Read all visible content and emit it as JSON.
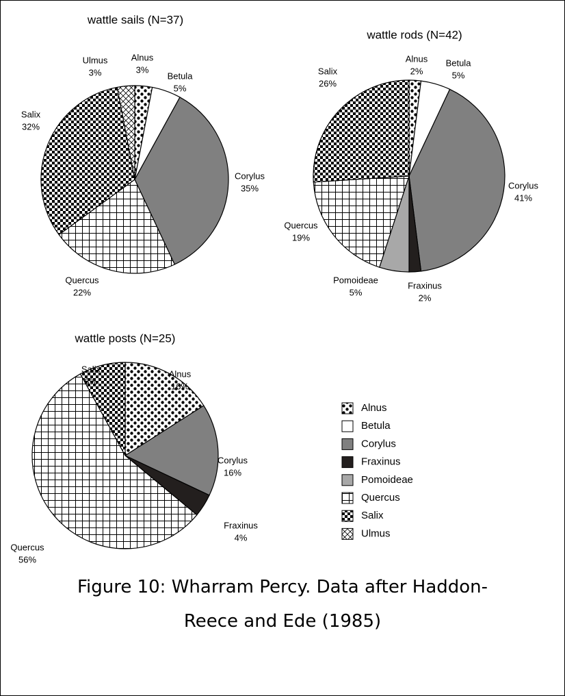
{
  "chart_data": [
    {
      "type": "pie",
      "title": "wattle sails (N=37)",
      "categories": [
        "Alnus",
        "Betula",
        "Corylus",
        "Quercus",
        "Salix",
        "Ulmus"
      ],
      "values": [
        3,
        5,
        35,
        22,
        32,
        3
      ],
      "value_labels": [
        "3%",
        "5%",
        "35%",
        "22%",
        "32%",
        "3%"
      ]
    },
    {
      "type": "pie",
      "title": "wattle rods (N=42)",
      "categories": [
        "Alnus",
        "Betula",
        "Corylus",
        "Fraxinus",
        "Pomoideae",
        "Quercus",
        "Salix"
      ],
      "values": [
        2,
        5,
        41,
        2,
        5,
        19,
        26
      ],
      "value_labels": [
        "2%",
        "5%",
        "41%",
        "2%",
        "5%",
        "19%",
        "26%"
      ]
    },
    {
      "type": "pie",
      "title": "wattle posts (N=25)",
      "categories": [
        "Alnus",
        "Corylus",
        "Fraxinus",
        "Quercus",
        "Salix"
      ],
      "values": [
        16,
        16,
        4,
        56,
        8
      ],
      "value_labels": [
        "16%",
        "16%",
        "4%",
        "56%",
        "8%"
      ]
    }
  ],
  "legend": {
    "labels": [
      "Alnus",
      "Betula",
      "Corylus",
      "Fraxinus",
      "Pomoideae",
      "Quercus",
      "Salix",
      "Ulmus"
    ],
    "fills": [
      "dots",
      "#ffffff",
      "#808080",
      "#231f1e",
      "#a8a8a8",
      "grid",
      "checker",
      "crosshatch"
    ]
  },
  "caption": "Figure 10: Wharram Percy. Data after Haddon-Reece and Ede (1985)"
}
